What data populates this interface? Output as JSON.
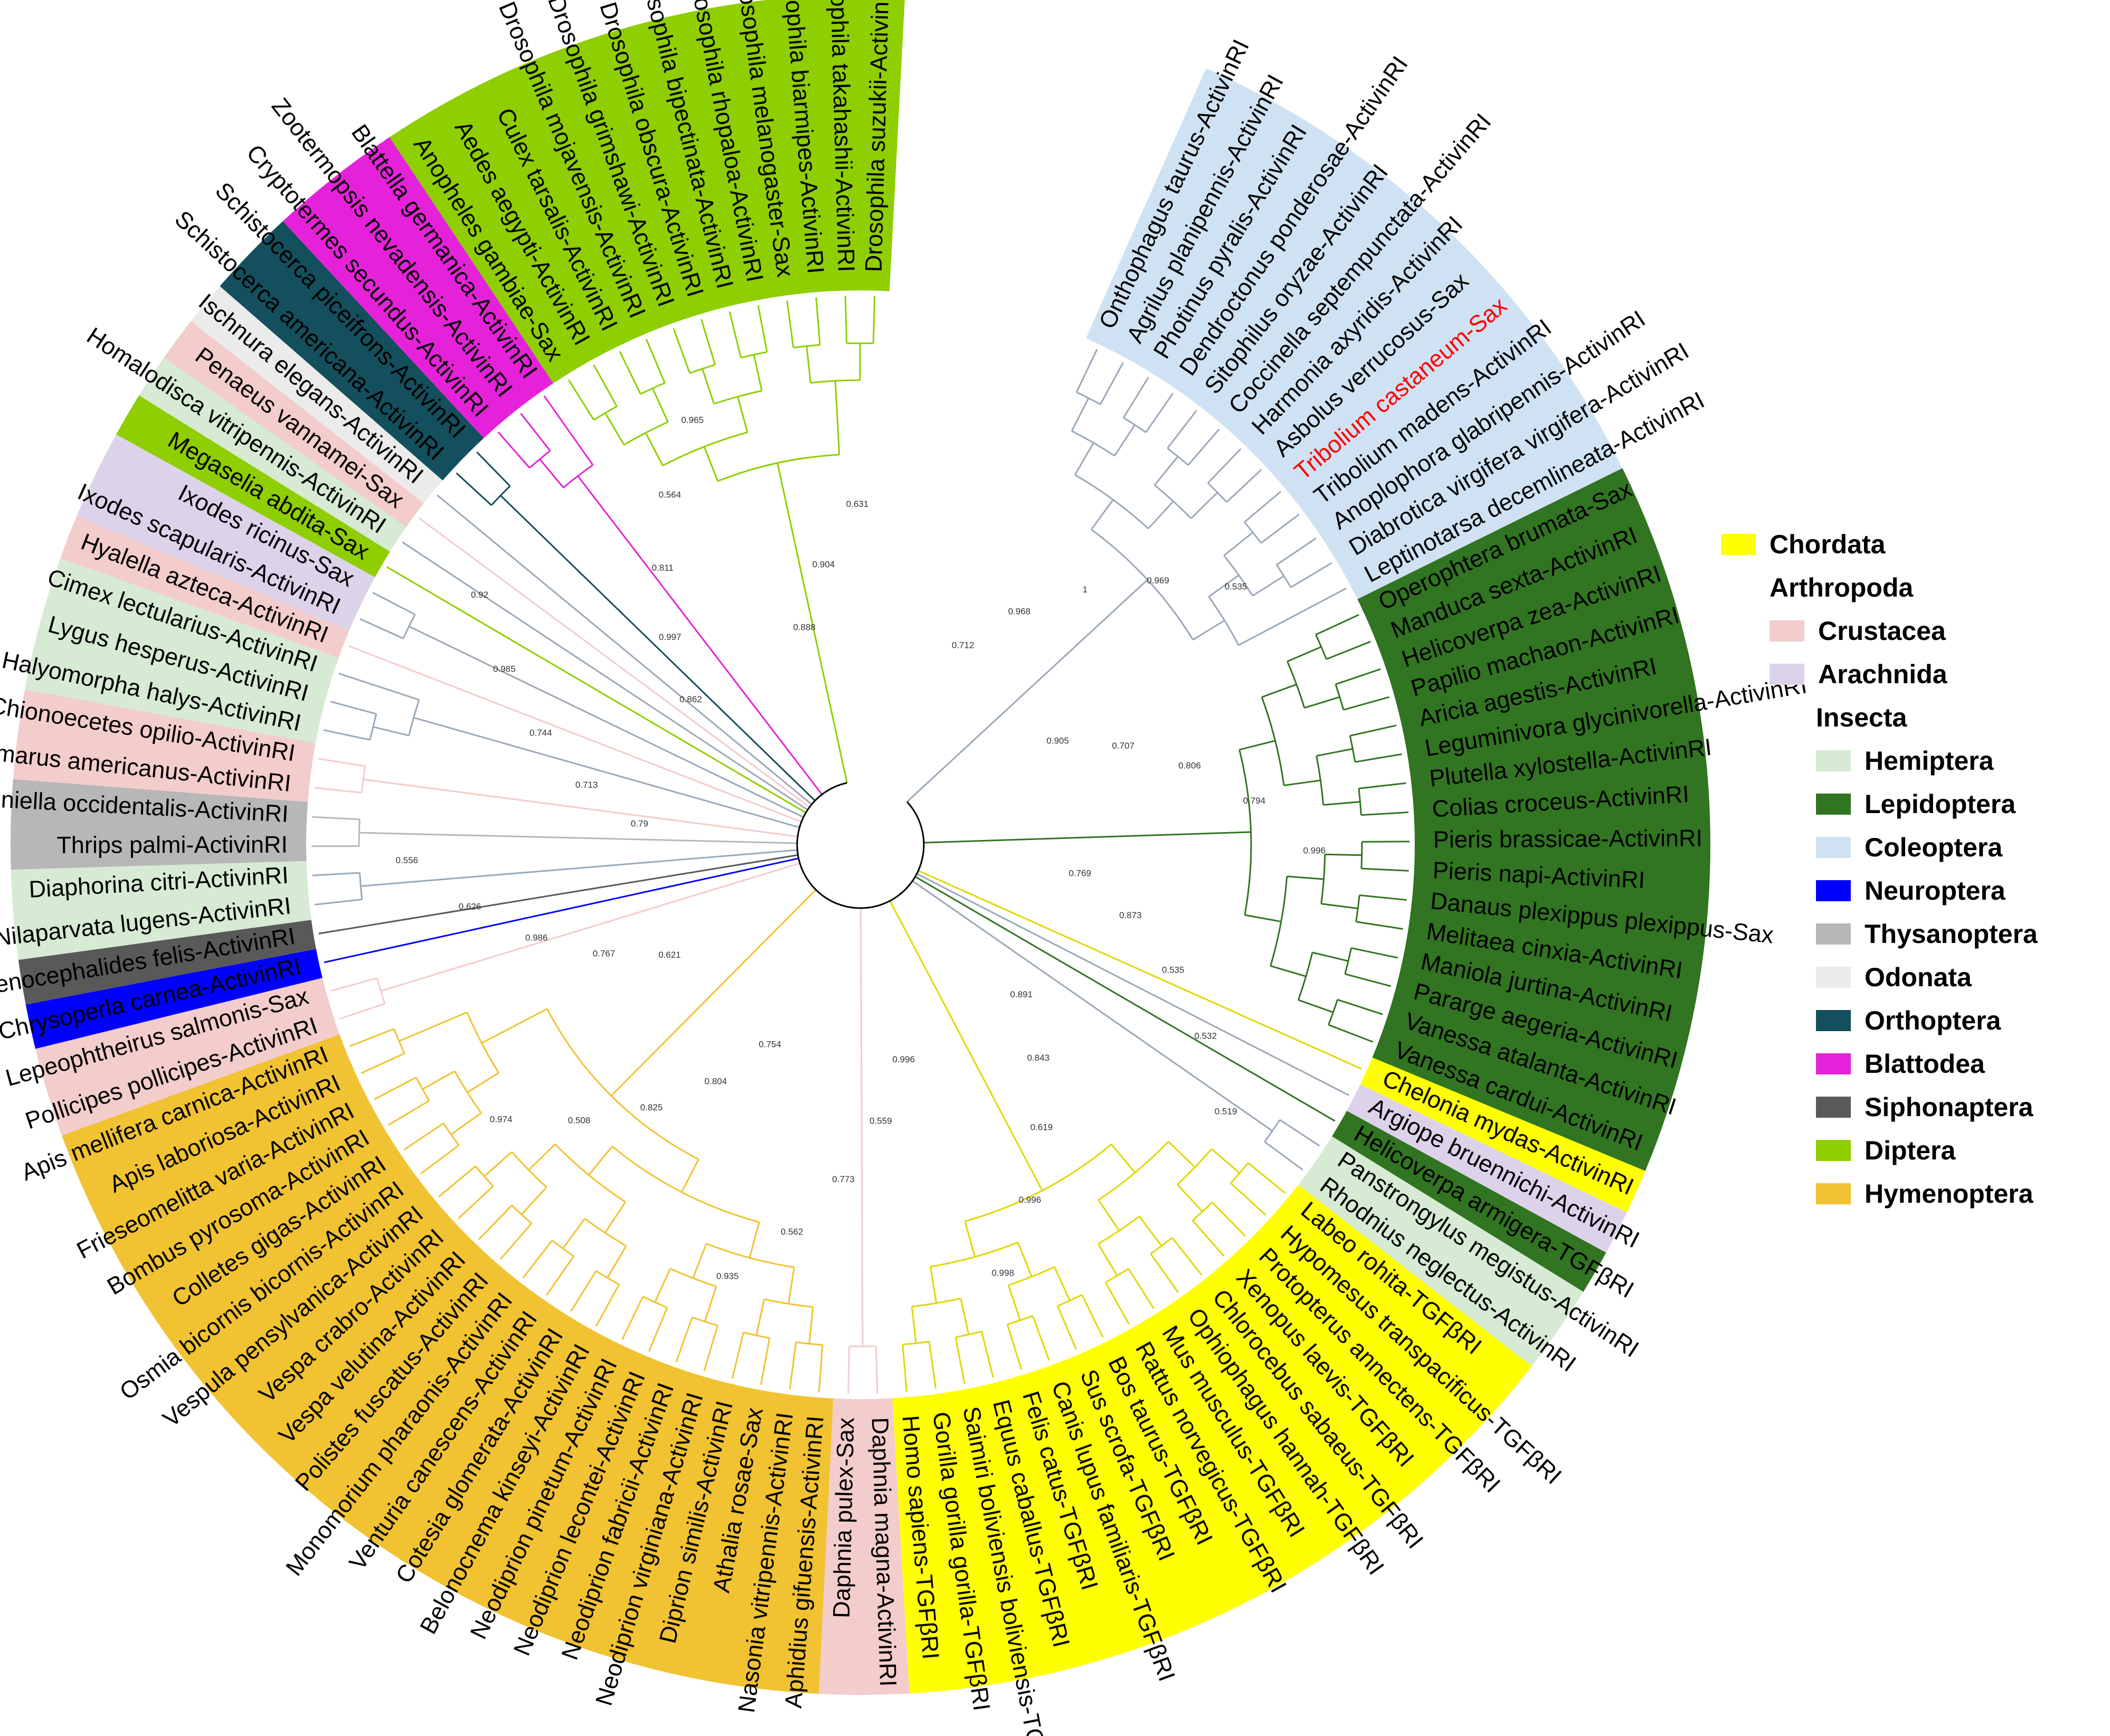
{
  "colors": {
    "Chordata": "#ffff00",
    "Crustacea": "#f3cccc",
    "Arachnida": "#dcd3ea",
    "Hemiptera": "#d6ead4",
    "Lepidoptera": "#317421",
    "Coleoptera": "#cfe2f3",
    "Neuroptera": "#0000ff",
    "Thysanoptera": "#b7b7b7",
    "Odonata": "#ebebeb",
    "Orthoptera": "#134f5c",
    "Blattodea": "#e522d9",
    "Siphonaptera": "#595959",
    "Diptera": "#8fce00",
    "Hymenoptera": "#f1c232",
    "highlight_text": "#ff0000"
  },
  "legend": [
    {
      "label": "Chordata",
      "group": "Chordata"
    },
    {
      "label": "Arthropoda",
      "group": null
    },
    {
      "label": "Crustacea",
      "group": "Crustacea"
    },
    {
      "label": "Arachnida",
      "group": "Arachnida"
    },
    {
      "label": "Insecta",
      "group": null
    },
    {
      "label": "Hemiptera",
      "group": "Hemiptera"
    },
    {
      "label": "Lepidoptera",
      "group": "Lepidoptera"
    },
    {
      "label": "Coleoptera",
      "group": "Coleoptera"
    },
    {
      "label": "Neuroptera",
      "group": "Neuroptera"
    },
    {
      "label": "Thysanoptera",
      "group": "Thysanoptera"
    },
    {
      "label": "Odonata",
      "group": "Odonata"
    },
    {
      "label": "Orthoptera",
      "group": "Orthoptera"
    },
    {
      "label": "Blattodea",
      "group": "Blattodea"
    },
    {
      "label": "Siphonaptera",
      "group": "Siphonaptera"
    },
    {
      "label": "Diptera",
      "group": "Diptera"
    },
    {
      "label": "Hymenoptera",
      "group": "Hymenoptera"
    }
  ],
  "taxa": [
    {
      "name": "Onthophagus taurus-ActivinRI",
      "group": "Coleoptera"
    },
    {
      "name": "Agrilus planipennis-ActivinRI",
      "group": "Coleoptera"
    },
    {
      "name": "Photinus pyralis-ActivinRI",
      "group": "Coleoptera"
    },
    {
      "name": "Dendroctonus ponderosae-ActivinRI",
      "group": "Coleoptera"
    },
    {
      "name": "Sitophilus oryzae-ActivinRI",
      "group": "Coleoptera"
    },
    {
      "name": "Coccinella septempunctata-ActivinRI",
      "group": "Coleoptera"
    },
    {
      "name": "Harmonia axyridis-ActivinRI",
      "group": "Coleoptera"
    },
    {
      "name": "Asbolus verrucosus-Sax",
      "group": "Coleoptera"
    },
    {
      "name": "Tribolium castaneum-Sax",
      "group": "Coleoptera",
      "highlight": true
    },
    {
      "name": "Tribolium madens-ActivinRI",
      "group": "Coleoptera"
    },
    {
      "name": "Anoplophora glabripennis-ActivinRI",
      "group": "Coleoptera"
    },
    {
      "name": "Diabrotica virgifera virgifera-ActivinRI",
      "group": "Coleoptera"
    },
    {
      "name": "Leptinotarsa decemlineata-ActivinRI",
      "group": "Coleoptera"
    },
    {
      "name": "Operophtera brumata-Sax",
      "group": "Lepidoptera"
    },
    {
      "name": "Manduca sexta-ActivinRI",
      "group": "Lepidoptera"
    },
    {
      "name": "Helicoverpa zea-ActivinRI",
      "group": "Lepidoptera"
    },
    {
      "name": "Papilio machaon-ActivinRI",
      "group": "Lepidoptera"
    },
    {
      "name": "Aricia agestis-ActivinRI",
      "group": "Lepidoptera"
    },
    {
      "name": "Leguminivora glycinivorella-ActivinRI",
      "group": "Lepidoptera"
    },
    {
      "name": "Plutella xylostella-ActivinRI",
      "group": "Lepidoptera"
    },
    {
      "name": "Colias croceus-ActivinRI",
      "group": "Lepidoptera"
    },
    {
      "name": "Pieris brassicae-ActivinRI",
      "group": "Lepidoptera"
    },
    {
      "name": "Pieris napi-ActivinRI",
      "group": "Lepidoptera"
    },
    {
      "name": "Danaus plexippus plexippus-Sax",
      "group": "Lepidoptera"
    },
    {
      "name": "Melitaea cinxia-ActivinRI",
      "group": "Lepidoptera"
    },
    {
      "name": "Maniola jurtina-ActivinRI",
      "group": "Lepidoptera"
    },
    {
      "name": "Pararge aegeria-ActivinRI",
      "group": "Lepidoptera"
    },
    {
      "name": "Vanessa atalanta-ActivinRI",
      "group": "Lepidoptera"
    },
    {
      "name": "Vanessa cardui-ActivinRI",
      "group": "Lepidoptera"
    },
    {
      "name": "Chelonia mydas-ActivinRI",
      "group": "Chordata"
    },
    {
      "name": "Argiope bruennichi-ActivinRI",
      "group": "Arachnida"
    },
    {
      "name": "Helicoverpa armigera-TGFβRI",
      "group": "Lepidoptera"
    },
    {
      "name": "Panstrongylus megistus-ActivinRI",
      "group": "Hemiptera"
    },
    {
      "name": "Rhodnius neglectus-ActivinRI",
      "group": "Hemiptera"
    },
    {
      "name": "Labeo rohita-TGFβRI",
      "group": "Chordata"
    },
    {
      "name": "Hypomesus transpacificus-TGFβRI",
      "group": "Chordata"
    },
    {
      "name": "Protopterus annectens-TGFβRI",
      "group": "Chordata"
    },
    {
      "name": "Xenopus laevis-TGFβRI",
      "group": "Chordata"
    },
    {
      "name": "Chlorocebus sabaeus-TGFβRI",
      "group": "Chordata"
    },
    {
      "name": "Ophiophagus hannah-TGFβRI",
      "group": "Chordata"
    },
    {
      "name": "Mus musculus-TGFβRI",
      "group": "Chordata"
    },
    {
      "name": "Rattus norvegicus-TGFβRI",
      "group": "Chordata"
    },
    {
      "name": "Bos taurus-TGFβRI",
      "group": "Chordata"
    },
    {
      "name": "Sus scrofa-TGFβRI",
      "group": "Chordata"
    },
    {
      "name": "Canis lupus familiaris-TGFβRI",
      "group": "Chordata"
    },
    {
      "name": "Felis catus-TGFβRI",
      "group": "Chordata"
    },
    {
      "name": "Equus caballus-TGFβRI",
      "group": "Chordata"
    },
    {
      "name": "Saimiri boliviensis boliviensis-TGFβRIs",
      "group": "Chordata"
    },
    {
      "name": "Gorilla gorilla gorilla-TGFβRI",
      "group": "Chordata"
    },
    {
      "name": "Homo sapiens-TGFβRI",
      "group": "Chordata"
    },
    {
      "name": "Daphnia magna-ActivinRI",
      "group": "Crustacea"
    },
    {
      "name": "Daphnia pulex-Sax",
      "group": "Crustacea"
    },
    {
      "name": "Aphidius gifuensis-ActivinRI",
      "group": "Hymenoptera"
    },
    {
      "name": "Nasonia vitripennis-ActivinRI",
      "group": "Hymenoptera"
    },
    {
      "name": "Athalia rosae-Sax",
      "group": "Hymenoptera"
    },
    {
      "name": "Diprion similis-ActivinRI",
      "group": "Hymenoptera"
    },
    {
      "name": "Neodiprion virginiana-ActivinRI",
      "group": "Hymenoptera"
    },
    {
      "name": "Neodiprion fabricii-ActivinRI",
      "group": "Hymenoptera"
    },
    {
      "name": "Neodiprion lecontei-ActivinRI",
      "group": "Hymenoptera"
    },
    {
      "name": "Neodiprion pinetum-ActivinRI",
      "group": "Hymenoptera"
    },
    {
      "name": "Belonocnema kinseyi-ActivinRI",
      "group": "Hymenoptera"
    },
    {
      "name": "Cotesia glomerata-ActivinRI",
      "group": "Hymenoptera"
    },
    {
      "name": "Venturia canescens-ActivinRI",
      "group": "Hymenoptera"
    },
    {
      "name": "Monomorium pharaonis-ActivinRI",
      "group": "Hymenoptera"
    },
    {
      "name": "Polistes fuscatus-ActivinRI",
      "group": "Hymenoptera"
    },
    {
      "name": "Vespa velutina-ActivinRI",
      "group": "Hymenoptera"
    },
    {
      "name": "Vespa crabro-ActivinRI",
      "group": "Hymenoptera"
    },
    {
      "name": "Vespula pensylvanica-ActivinRI",
      "group": "Hymenoptera"
    },
    {
      "name": "Osmia bicornis bicornis-ActivinRI",
      "group": "Hymenoptera"
    },
    {
      "name": "Colletes gigas-ActivinRI",
      "group": "Hymenoptera"
    },
    {
      "name": "Bombus pyrosoma-ActivinRI",
      "group": "Hymenoptera"
    },
    {
      "name": "Frieseomelitta varia-ActivinRI",
      "group": "Hymenoptera"
    },
    {
      "name": "Apis laboriosa-ActivinRI",
      "group": "Hymenoptera"
    },
    {
      "name": "Apis mellifera carnica-ActivinRI",
      "group": "Hymenoptera"
    },
    {
      "name": "Pollicipes pollicipes-ActivinRI",
      "group": "Crustacea"
    },
    {
      "name": "Lepeophtheirus salmonis-Sax",
      "group": "Crustacea"
    },
    {
      "name": "Chrysoperla carnea-ActivinRI",
      "group": "Neuroptera"
    },
    {
      "name": "Ctenocephalides felis-ActivinRI",
      "group": "Siphonaptera"
    },
    {
      "name": "Nilaparvata lugens-ActivinRI",
      "group": "Hemiptera"
    },
    {
      "name": "Diaphorina citri-ActivinRI",
      "group": "Hemiptera"
    },
    {
      "name": "Thrips palmi-ActivinRI",
      "group": "Thysanoptera"
    },
    {
      "name": "Frankliniella occidentalis-ActivinRI",
      "group": "Thysanoptera"
    },
    {
      "name": "Homarus americanus-ActivinRI",
      "group": "Crustacea"
    },
    {
      "name": "Chionoecetes opilio-ActivinRI",
      "group": "Crustacea"
    },
    {
      "name": "Halyomorpha halys-ActivinRI",
      "group": "Hemiptera"
    },
    {
      "name": "Lygus hesperus-ActivinRI",
      "group": "Hemiptera"
    },
    {
      "name": "Cimex lectularius-ActivinRI",
      "group": "Hemiptera"
    },
    {
      "name": "Hyalella azteca-ActivinRI",
      "group": "Crustacea"
    },
    {
      "name": "Ixodes scapularis-ActivinRI",
      "group": "Arachnida"
    },
    {
      "name": "Ixodes ricinus-Sax",
      "group": "Arachnida"
    },
    {
      "name": "Megaselia abdita-Sax",
      "group": "Diptera"
    },
    {
      "name": "Homalodisca vitripennis-ActivinRI",
      "group": "Hemiptera"
    },
    {
      "name": "Penaeus vannamei-Sax",
      "group": "Crustacea"
    },
    {
      "name": "Ischnura elegans-ActivinRI",
      "group": "Odonata"
    },
    {
      "name": "Schistocerca americana-ActivinRI",
      "group": "Orthoptera"
    },
    {
      "name": "Schistocerca piceifrons-ActivinRI",
      "group": "Orthoptera"
    },
    {
      "name": "Cryptotermes secundus-ActivinRI",
      "group": "Blattodea"
    },
    {
      "name": "Zootermopsis nevadensis-ActivinRI",
      "group": "Blattodea"
    },
    {
      "name": "Blattella germanica-ActivinRI",
      "group": "Blattodea"
    },
    {
      "name": "Anopheles gambiae-Sax",
      "group": "Diptera"
    },
    {
      "name": "Aedes aegypti-ActivinRI",
      "group": "Diptera"
    },
    {
      "name": "Culex tarsalis-ActivinRI",
      "group": "Diptera"
    },
    {
      "name": "Drosophila mojavensis-ActivinRI",
      "group": "Diptera"
    },
    {
      "name": "Drosophila grimshawi-ActivinRI",
      "group": "Diptera"
    },
    {
      "name": "Drosophila obscura-ActivinRI",
      "group": "Diptera"
    },
    {
      "name": "Drosophila bipectinata-ActivinRI",
      "group": "Diptera"
    },
    {
      "name": "Drosophila rhopaloa-ActivinRI",
      "group": "Diptera"
    },
    {
      "name": "Drosophila melanogaster-Sax",
      "group": "Diptera"
    },
    {
      "name": "Drosophila biarmipes-ActivinRI",
      "group": "Diptera"
    },
    {
      "name": "Drosophila takahashii-ActivinRI",
      "group": "Diptera"
    },
    {
      "name": "Drosophila suzukii-ActivinRI",
      "group": "Diptera"
    }
  ],
  "support_values": [
    "0.712",
    "0.968",
    "1",
    "0.969",
    "0.535",
    "0.905",
    "0.707",
    "0.806",
    "0.794",
    "0.996",
    "0.769",
    "0.873",
    "0.535",
    "0.532",
    "0.519",
    "0.891",
    "0.843",
    "0.619",
    "0.996",
    "0.998",
    "0.996",
    "0.559",
    "0.773",
    "0.562",
    "0.935",
    "0.754",
    "0.804",
    "0.825",
    "0.508",
    "0.974",
    "0.621",
    "0.767",
    "0.986",
    "0.626",
    "0.556",
    "0.79",
    "0.713",
    "0.744",
    "0.985",
    "0.92",
    "0.862",
    "0.997",
    "0.811",
    "0.564",
    "0.965",
    "0.888",
    "0.904",
    "0.631"
  ]
}
